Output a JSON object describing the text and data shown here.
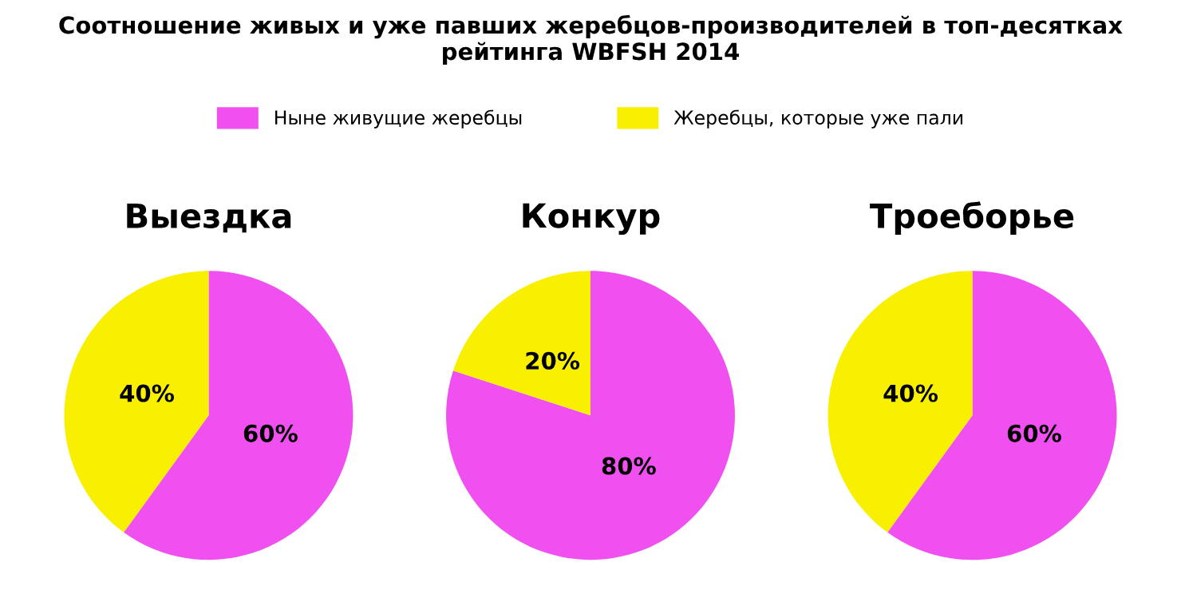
{
  "chart_data": [
    {
      "type": "pie",
      "title": "Выездка",
      "annotations": [
        "Соотношение живых и уже павших жеребцов-производителей в топ-десятках рейтинга WBFSH 2014"
      ],
      "categories": [
        "Ныне живущие жеребцы",
        "Жеребцы, которые уже пали"
      ],
      "values": [
        60,
        40
      ],
      "colors": [
        "#f050f0",
        "#f8f000"
      ],
      "value_labels": [
        "60%",
        "40%"
      ],
      "legend": "top"
    },
    {
      "type": "pie",
      "title": "Конкур",
      "categories": [
        null,
        null
      ],
      "values": [
        80,
        20
      ],
      "colors": [
        "#f050f0",
        "#f8f000"
      ],
      "value_labels": [
        "80%",
        "20%"
      ]
    },
    {
      "type": "pie",
      "title": "Троеборье",
      "categories": [
        null,
        null
      ],
      "values": [
        60,
        40
      ],
      "colors": [
        "#f050f0",
        "#f8f000"
      ],
      "value_labels": [
        "60%",
        "40%"
      ]
    }
  ]
}
